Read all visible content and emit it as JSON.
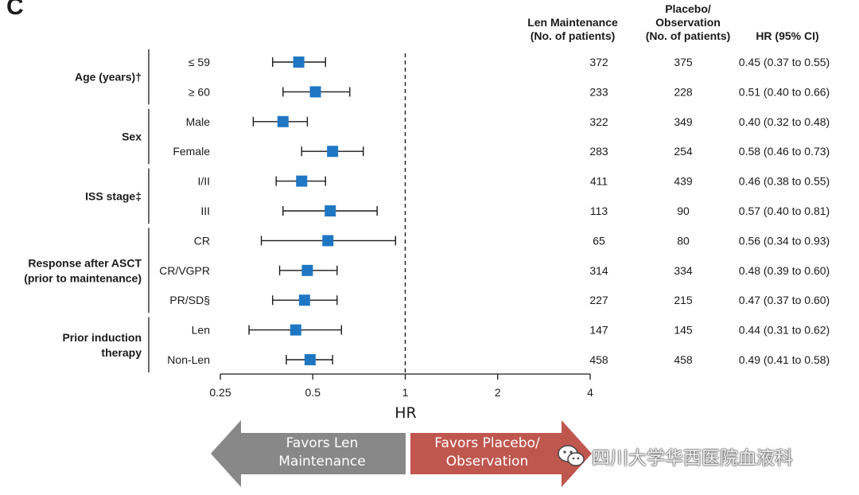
{
  "panel_label": "C",
  "columns": {
    "len": [
      "Len Maintenance",
      "(No. of patients)"
    ],
    "placebo": [
      "Placebo/",
      "Observation",
      "(No. of patients)"
    ],
    "hr": "HR (95% CI)"
  },
  "chart_data": {
    "type": "forest",
    "xlabel": "HR",
    "xscale": "log",
    "xlim": [
      0.25,
      4
    ],
    "xticks": [
      0.25,
      0.5,
      1,
      2,
      4
    ],
    "xtick_labels": [
      "0.25",
      "0.5",
      "1",
      "2",
      "4"
    ],
    "reference_line": 1,
    "groups": [
      {
        "label": [
          "Age (years)†"
        ],
        "rows": [
          0,
          1
        ]
      },
      {
        "label": [
          "Sex"
        ],
        "rows": [
          2,
          3
        ]
      },
      {
        "label": [
          "ISS stage‡"
        ],
        "rows": [
          4,
          5
        ]
      },
      {
        "label": [
          "Response after ASCT",
          "(prior to maintenance)"
        ],
        "rows": [
          6,
          7,
          8
        ]
      },
      {
        "label": [
          "Prior induction",
          "therapy"
        ],
        "rows": [
          9,
          10
        ]
      }
    ],
    "rows": [
      {
        "label": "≤ 59",
        "hr": 0.45,
        "lo": 0.37,
        "hi": 0.55,
        "len_n": "372",
        "placebo_n": "375",
        "ci_text": "0.45 (0.37 to 0.55)"
      },
      {
        "label": "≥ 60",
        "hr": 0.51,
        "lo": 0.4,
        "hi": 0.66,
        "len_n": "233",
        "placebo_n": "228",
        "ci_text": "0.51 (0.40 to 0.66)"
      },
      {
        "label": "Male",
        "hr": 0.4,
        "lo": 0.32,
        "hi": 0.48,
        "len_n": "322",
        "placebo_n": "349",
        "ci_text": "0.40 (0.32 to 0.48)"
      },
      {
        "label": "Female",
        "hr": 0.58,
        "lo": 0.46,
        "hi": 0.73,
        "len_n": "283",
        "placebo_n": "254",
        "ci_text": "0.58 (0.46 to 0.73)"
      },
      {
        "label": "I/II",
        "hr": 0.46,
        "lo": 0.38,
        "hi": 0.55,
        "len_n": "411",
        "placebo_n": "439",
        "ci_text": "0.46 (0.38 to 0.55)"
      },
      {
        "label": "III",
        "hr": 0.57,
        "lo": 0.4,
        "hi": 0.81,
        "len_n": "113",
        "placebo_n": "90",
        "ci_text": "0.57 (0.40 to 0.81)"
      },
      {
        "label": "CR",
        "hr": 0.56,
        "lo": 0.34,
        "hi": 0.93,
        "len_n": "65",
        "placebo_n": "80",
        "ci_text": "0.56 (0.34 to 0.93)"
      },
      {
        "label": "CR/VGPR",
        "hr": 0.48,
        "lo": 0.39,
        "hi": 0.6,
        "len_n": "314",
        "placebo_n": "334",
        "ci_text": "0.48 (0.39 to 0.60)"
      },
      {
        "label": "PR/SD§",
        "hr": 0.47,
        "lo": 0.37,
        "hi": 0.6,
        "len_n": "227",
        "placebo_n": "215",
        "ci_text": "0.47 (0.37 to 0.60)"
      },
      {
        "label": "Len",
        "hr": 0.44,
        "lo": 0.31,
        "hi": 0.62,
        "len_n": "147",
        "placebo_n": "145",
        "ci_text": "0.44 (0.31 to 0.62)"
      },
      {
        "label": "Non-Len",
        "hr": 0.49,
        "lo": 0.41,
        "hi": 0.58,
        "len_n": "458",
        "placebo_n": "458",
        "ci_text": "0.49 (0.41 to 0.58)"
      }
    ]
  },
  "arrows": {
    "left": {
      "lines": [
        "Favors Len",
        "Maintenance"
      ],
      "color": "#888888"
    },
    "right": {
      "lines": [
        "Favors Placebo/",
        "Observation"
      ],
      "color": "#c0574f"
    }
  },
  "watermark": {
    "text": "四川大学华西医院血液科",
    "icon": "wechat-icon"
  },
  "colors": {
    "marker": "#1f77c4",
    "text": "#1a1a1a"
  }
}
